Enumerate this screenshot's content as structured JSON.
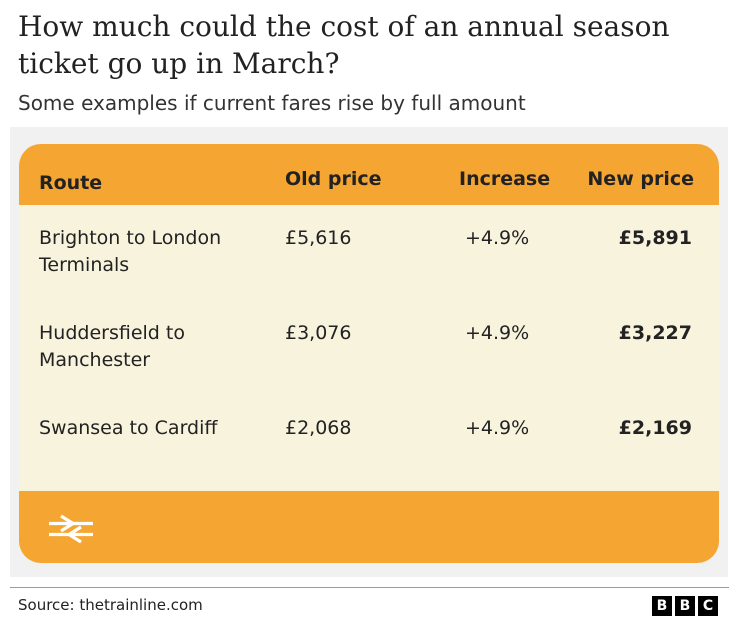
{
  "title": "How much could the cost of an annual season ticket go up in March?",
  "subtitle": "Some examples if current fares rise by full amount",
  "chart_data": {
    "type": "table",
    "columns": [
      "Route",
      "Old price",
      "Increase",
      "New price"
    ],
    "rows": [
      {
        "route": "Brighton to London Terminals",
        "old_price": "£5,616",
        "increase": "+4.9%",
        "new_price": "£5,891"
      },
      {
        "route": "Huddersfield to Manchester",
        "old_price": "£3,076",
        "increase": "+4.9%",
        "new_price": "£3,227"
      },
      {
        "route": "Swansea to Cardiff",
        "old_price": "£2,068",
        "increase": "+4.9%",
        "new_price": "£2,169"
      }
    ]
  },
  "icons": {
    "footer_icon": "national-rail-icon"
  },
  "colors": {
    "card_orange": "#f5a531",
    "row_background": "#f8f3dd",
    "panel_background": "#f1f1f1"
  },
  "footer": {
    "source": "Source: thetrainline.com",
    "logo": [
      "B",
      "B",
      "C"
    ]
  }
}
